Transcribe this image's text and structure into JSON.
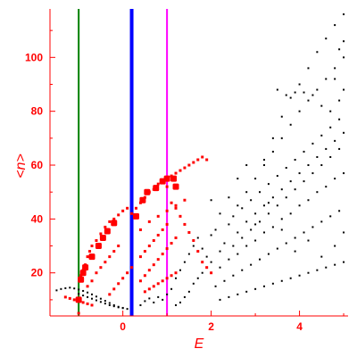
{
  "chart_data": {
    "type": "scatter",
    "title": "",
    "xlabel": "E",
    "ylabel": "<n>",
    "xlim": [
      -1.65,
      5.1
    ],
    "ylim": [
      4,
      118
    ],
    "xticks": [
      0,
      2,
      4
    ],
    "yticks": [
      20,
      40,
      60,
      80,
      100
    ],
    "grid": false,
    "colors": {
      "axis": "#ff0000",
      "tick_labels": "#ff0000",
      "points_dark": "#000000",
      "points_highlight": "#ff0000"
    },
    "vlines": [
      {
        "x": -1.0,
        "color": "#008000",
        "width": 2
      },
      {
        "x": 0.2,
        "color": "#0000ff",
        "width": 4
      },
      {
        "x": 1.0,
        "color": "#ff00ff",
        "width": 2
      }
    ],
    "series": [
      {
        "color": "#000000",
        "marker": "dot",
        "points": [
          [
            -1.5,
            13.5
          ],
          [
            -1.4,
            14
          ],
          [
            -1.3,
            14.3
          ],
          [
            -1.2,
            14.5
          ],
          [
            -1.1,
            14.2
          ],
          [
            -1.0,
            13.8
          ],
          [
            -0.9,
            13.3
          ],
          [
            -0.8,
            12.7
          ],
          [
            -0.7,
            12
          ],
          [
            -0.6,
            11.2
          ],
          [
            -0.5,
            10.4
          ],
          [
            -0.4,
            9.6
          ],
          [
            -0.3,
            8.8
          ],
          [
            -0.2,
            8
          ],
          [
            -0.1,
            7.4
          ],
          [
            0.0,
            7
          ],
          [
            -1.0,
            12.2
          ],
          [
            -0.9,
            11.6
          ],
          [
            -0.8,
            11
          ],
          [
            -0.7,
            10.4
          ],
          [
            -0.6,
            9.8
          ],
          [
            -0.5,
            9.2
          ],
          [
            -0.4,
            8.6
          ],
          [
            -0.3,
            8
          ],
          [
            -0.2,
            7.6
          ],
          [
            -0.1,
            7.2
          ],
          [
            0.0,
            6.9
          ],
          [
            0.1,
            6.6
          ],
          [
            0.4,
            8
          ],
          [
            0.5,
            9.5
          ],
          [
            0.6,
            10.5
          ],
          [
            0.7,
            9
          ],
          [
            0.8,
            11
          ],
          [
            0.9,
            10
          ],
          [
            1.0,
            12
          ],
          [
            1.1,
            14
          ],
          [
            1.2,
            8
          ],
          [
            1.3,
            9
          ],
          [
            1.4,
            11
          ],
          [
            1.5,
            13
          ],
          [
            1.6,
            16
          ],
          [
            1.7,
            18
          ],
          [
            1.8,
            20
          ],
          [
            1.9,
            22
          ],
          [
            2.0,
            24
          ],
          [
            1.2,
            18
          ],
          [
            1.3,
            21
          ],
          [
            1.4,
            24
          ],
          [
            1.5,
            27
          ],
          [
            1.6,
            30
          ],
          [
            1.7,
            33
          ],
          [
            1.8,
            29
          ],
          [
            1.9,
            26
          ],
          [
            2.0,
            34
          ],
          [
            2.1,
            36
          ],
          [
            2.2,
            28
          ],
          [
            2.3,
            31
          ],
          [
            2.4,
            38
          ],
          [
            2.5,
            41
          ],
          [
            2.6,
            35
          ],
          [
            2.7,
            44
          ],
          [
            2.8,
            39
          ],
          [
            2.9,
            47
          ],
          [
            3.0,
            42
          ],
          [
            3.1,
            50
          ],
          [
            3.2,
            45
          ],
          [
            3.3,
            53
          ],
          [
            3.4,
            48
          ],
          [
            3.5,
            56
          ],
          [
            3.6,
            51
          ],
          [
            3.7,
            59
          ],
          [
            3.8,
            54
          ],
          [
            3.9,
            62
          ],
          [
            4.0,
            57
          ],
          [
            4.1,
            65
          ],
          [
            4.2,
            60
          ],
          [
            4.3,
            68
          ],
          [
            4.4,
            63
          ],
          [
            4.5,
            71
          ],
          [
            4.6,
            66
          ],
          [
            4.7,
            74
          ],
          [
            4.8,
            69
          ],
          [
            4.9,
            77
          ],
          [
            5.0,
            72
          ],
          [
            2.0,
            20
          ],
          [
            2.2,
            22
          ],
          [
            2.4,
            25
          ],
          [
            2.6,
            27
          ],
          [
            2.8,
            30
          ],
          [
            3.0,
            32
          ],
          [
            3.2,
            35
          ],
          [
            3.4,
            37
          ],
          [
            3.6,
            40
          ],
          [
            3.8,
            42
          ],
          [
            4.0,
            45
          ],
          [
            4.2,
            47
          ],
          [
            4.4,
            50
          ],
          [
            4.6,
            52
          ],
          [
            4.8,
            55
          ],
          [
            5.0,
            57
          ],
          [
            2.1,
            15
          ],
          [
            2.3,
            17
          ],
          [
            2.5,
            19
          ],
          [
            2.7,
            21
          ],
          [
            2.9,
            23
          ],
          [
            3.1,
            25
          ],
          [
            3.3,
            27
          ],
          [
            3.5,
            29
          ],
          [
            3.7,
            31
          ],
          [
            3.9,
            33
          ],
          [
            4.1,
            35
          ],
          [
            4.3,
            37
          ],
          [
            4.5,
            39
          ],
          [
            4.7,
            41
          ],
          [
            4.9,
            43
          ],
          [
            2.2,
            10
          ],
          [
            2.4,
            11
          ],
          [
            2.6,
            12
          ],
          [
            2.8,
            13
          ],
          [
            3.0,
            14
          ],
          [
            3.2,
            15
          ],
          [
            3.4,
            16
          ],
          [
            3.6,
            17
          ],
          [
            3.8,
            18
          ],
          [
            4.0,
            19
          ],
          [
            4.2,
            20
          ],
          [
            4.4,
            21
          ],
          [
            4.6,
            22
          ],
          [
            4.8,
            23
          ],
          [
            5.0,
            24
          ],
          [
            2.5,
            30
          ],
          [
            2.7,
            33
          ],
          [
            2.9,
            36
          ],
          [
            3.1,
            39
          ],
          [
            3.3,
            42
          ],
          [
            3.5,
            45
          ],
          [
            3.7,
            48
          ],
          [
            3.9,
            51
          ],
          [
            4.1,
            54
          ],
          [
            4.3,
            57
          ],
          [
            4.5,
            60
          ],
          [
            4.7,
            63
          ],
          [
            4.9,
            66
          ],
          [
            2.6,
            45
          ],
          [
            2.8,
            50
          ],
          [
            3.0,
            55
          ],
          [
            3.2,
            60
          ],
          [
            3.4,
            65
          ],
          [
            3.6,
            70
          ],
          [
            3.8,
            75
          ],
          [
            4.0,
            80
          ],
          [
            4.2,
            84
          ],
          [
            4.4,
            88
          ],
          [
            4.6,
            92
          ],
          [
            4.8,
            96
          ],
          [
            5.0,
            100
          ],
          [
            3.2,
            62
          ],
          [
            3.4,
            70
          ],
          [
            3.6,
            78
          ],
          [
            3.8,
            85
          ],
          [
            4.0,
            90
          ],
          [
            4.2,
            96
          ],
          [
            4.4,
            102
          ],
          [
            4.6,
            107
          ],
          [
            4.8,
            112
          ],
          [
            5.0,
            116
          ],
          [
            3.5,
            88
          ],
          [
            3.7,
            86
          ],
          [
            3.9,
            87
          ],
          [
            4.1,
            87
          ],
          [
            4.3,
            86
          ],
          [
            4.5,
            82
          ],
          [
            4.7,
            80
          ],
          [
            4.9,
            84
          ],
          [
            5.0,
            88
          ],
          [
            4.8,
            92
          ],
          [
            4.9,
            103
          ],
          [
            5.0,
            106
          ],
          [
            2.0,
            47
          ],
          [
            2.2,
            42
          ],
          [
            2.4,
            48
          ],
          [
            2.6,
            55
          ],
          [
            2.8,
            60
          ],
          [
            3.0,
            38
          ],
          [
            3.3,
            46
          ],
          [
            3.6,
            36
          ],
          [
            3.9,
            28
          ],
          [
            4.2,
            32
          ],
          [
            4.5,
            26
          ],
          [
            4.8,
            30
          ],
          [
            5.0,
            35
          ]
        ]
      },
      {
        "color": "#ff0000",
        "marker": "square",
        "points": [
          [
            -1.0,
            5
          ],
          [
            -1.0,
            10.5
          ],
          [
            -0.95,
            19
          ],
          [
            -0.9,
            21
          ],
          [
            -0.85,
            23
          ],
          [
            -0.8,
            26
          ],
          [
            -0.75,
            28
          ],
          [
            -0.7,
            30
          ],
          [
            -0.6,
            32
          ],
          [
            -0.5,
            34.5
          ],
          [
            -0.4,
            37
          ],
          [
            -0.3,
            39
          ],
          [
            -0.2,
            40
          ],
          [
            -0.1,
            41.5
          ],
          [
            0.0,
            43
          ],
          [
            0.1,
            44
          ],
          [
            0.2,
            42
          ],
          [
            0.3,
            44
          ],
          [
            0.4,
            46
          ],
          [
            0.5,
            48
          ],
          [
            0.6,
            50
          ],
          [
            0.7,
            51
          ],
          [
            0.8,
            53
          ],
          [
            0.9,
            54.5
          ],
          [
            1.0,
            55.5
          ],
          [
            1.1,
            56
          ],
          [
            1.2,
            57
          ],
          [
            1.3,
            58
          ],
          [
            1.4,
            59
          ],
          [
            1.5,
            60
          ],
          [
            1.6,
            61
          ],
          [
            1.7,
            62
          ],
          [
            1.8,
            63
          ],
          [
            1.9,
            62
          ],
          [
            1.0,
            52
          ],
          [
            1.1,
            46
          ],
          [
            1.2,
            44
          ],
          [
            1.3,
            41
          ],
          [
            1.4,
            38
          ],
          [
            1.5,
            35
          ],
          [
            1.6,
            32
          ],
          [
            1.7,
            28
          ],
          [
            1.8,
            24
          ],
          [
            1.9,
            22
          ],
          [
            2.0,
            20
          ],
          [
            -0.8,
            15
          ],
          [
            -0.7,
            17
          ],
          [
            -0.6,
            20
          ],
          [
            -0.5,
            22
          ],
          [
            -0.4,
            24
          ],
          [
            -0.3,
            26
          ],
          [
            -0.2,
            28
          ],
          [
            -0.1,
            30
          ],
          [
            -0.3,
            12
          ],
          [
            -0.2,
            14
          ],
          [
            -0.1,
            16
          ],
          [
            0.0,
            18
          ],
          [
            0.1,
            20
          ],
          [
            0.2,
            22
          ],
          [
            0.4,
            26
          ],
          [
            0.5,
            28
          ],
          [
            0.6,
            30
          ],
          [
            0.7,
            32
          ],
          [
            0.8,
            34
          ],
          [
            0.9,
            36
          ],
          [
            1.0,
            38
          ],
          [
            0.4,
            17
          ],
          [
            0.5,
            19
          ],
          [
            0.6,
            21
          ],
          [
            0.7,
            23
          ],
          [
            0.8,
            25
          ],
          [
            0.9,
            27
          ],
          [
            1.0,
            29
          ],
          [
            1.1,
            31
          ],
          [
            1.2,
            33
          ],
          [
            0.5,
            13
          ],
          [
            0.6,
            14
          ],
          [
            0.7,
            15
          ],
          [
            0.8,
            16
          ],
          [
            0.9,
            17
          ],
          [
            1.0,
            18
          ],
          [
            1.1,
            19
          ],
          [
            1.2,
            20
          ],
          [
            -1.3,
            11
          ],
          [
            -1.2,
            10.5
          ],
          [
            -1.1,
            10
          ],
          [
            -1.0,
            9.5
          ],
          [
            -0.9,
            9
          ],
          [
            -0.8,
            8.5
          ],
          [
            -0.7,
            8
          ],
          [
            0.4,
            36
          ],
          [
            0.6,
            39
          ],
          [
            0.8,
            41
          ],
          [
            1.0,
            43
          ],
          [
            1.2,
            45
          ],
          [
            1.4,
            47
          ]
        ]
      },
      {
        "color": "#ff0000",
        "marker": "big-square",
        "points": [
          [
            -1.0,
            10
          ],
          [
            -0.95,
            17.5
          ],
          [
            -0.9,
            20
          ],
          [
            -0.85,
            22
          ],
          [
            -0.7,
            26
          ],
          [
            -0.55,
            30
          ],
          [
            -0.45,
            33
          ],
          [
            -0.35,
            35.5
          ],
          [
            -0.2,
            38.5
          ],
          [
            0.3,
            41
          ],
          [
            0.45,
            47
          ],
          [
            0.55,
            50
          ],
          [
            0.75,
            51.5
          ],
          [
            0.9,
            54
          ],
          [
            1.0,
            55
          ],
          [
            1.15,
            55
          ],
          [
            1.2,
            52
          ]
        ]
      }
    ]
  }
}
